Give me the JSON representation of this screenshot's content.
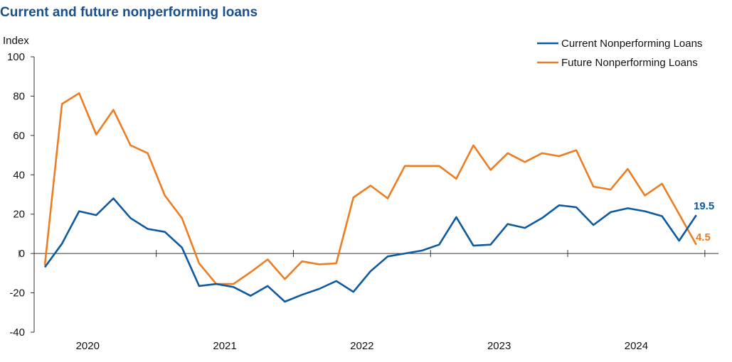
{
  "chart_data": {
    "type": "line",
    "title": "Current and future nonperforming loans",
    "ylabel": "Index",
    "xlabel": "",
    "ylim": [
      -40,
      100
    ],
    "yticks": [
      -40,
      -20,
      0,
      20,
      40,
      60,
      80,
      100
    ],
    "year_labels": [
      "2020",
      "2021",
      "2022",
      "2023",
      "2024"
    ],
    "legend_position": "top-right",
    "series": [
      {
        "name": "Current Nonperforming Loans",
        "color": "#0d5aa0",
        "end_label": "19.5",
        "values": [
          -7,
          5,
          21.5,
          19.5,
          28,
          18,
          12.5,
          11,
          3,
          -16.5,
          -15.5,
          -17,
          -21.5,
          -16.5,
          -24.5,
          -21,
          -18,
          -14,
          -19.5,
          -9,
          -1.5,
          0,
          1.5,
          4.5,
          18.5,
          4,
          4.5,
          15,
          13,
          18,
          24.5,
          23.5,
          14.5,
          21,
          23,
          21.5,
          19,
          6.5,
          19.5
        ]
      },
      {
        "name": "Future Nonperforming Loans",
        "color": "#ed7d22",
        "end_label": "4.5",
        "values": [
          -6,
          76,
          81.5,
          60.5,
          73,
          55,
          51,
          29.5,
          18,
          -5,
          -15.5,
          -15.5,
          -9.5,
          -3,
          -13,
          -4,
          -5.5,
          -5,
          28.5,
          34.5,
          28,
          44.5,
          44.5,
          44.5,
          38,
          55,
          42.5,
          51,
          46.5,
          51,
          49.5,
          52.5,
          34,
          32.5,
          43,
          29.5,
          35.5,
          20,
          4.5
        ]
      }
    ]
  }
}
